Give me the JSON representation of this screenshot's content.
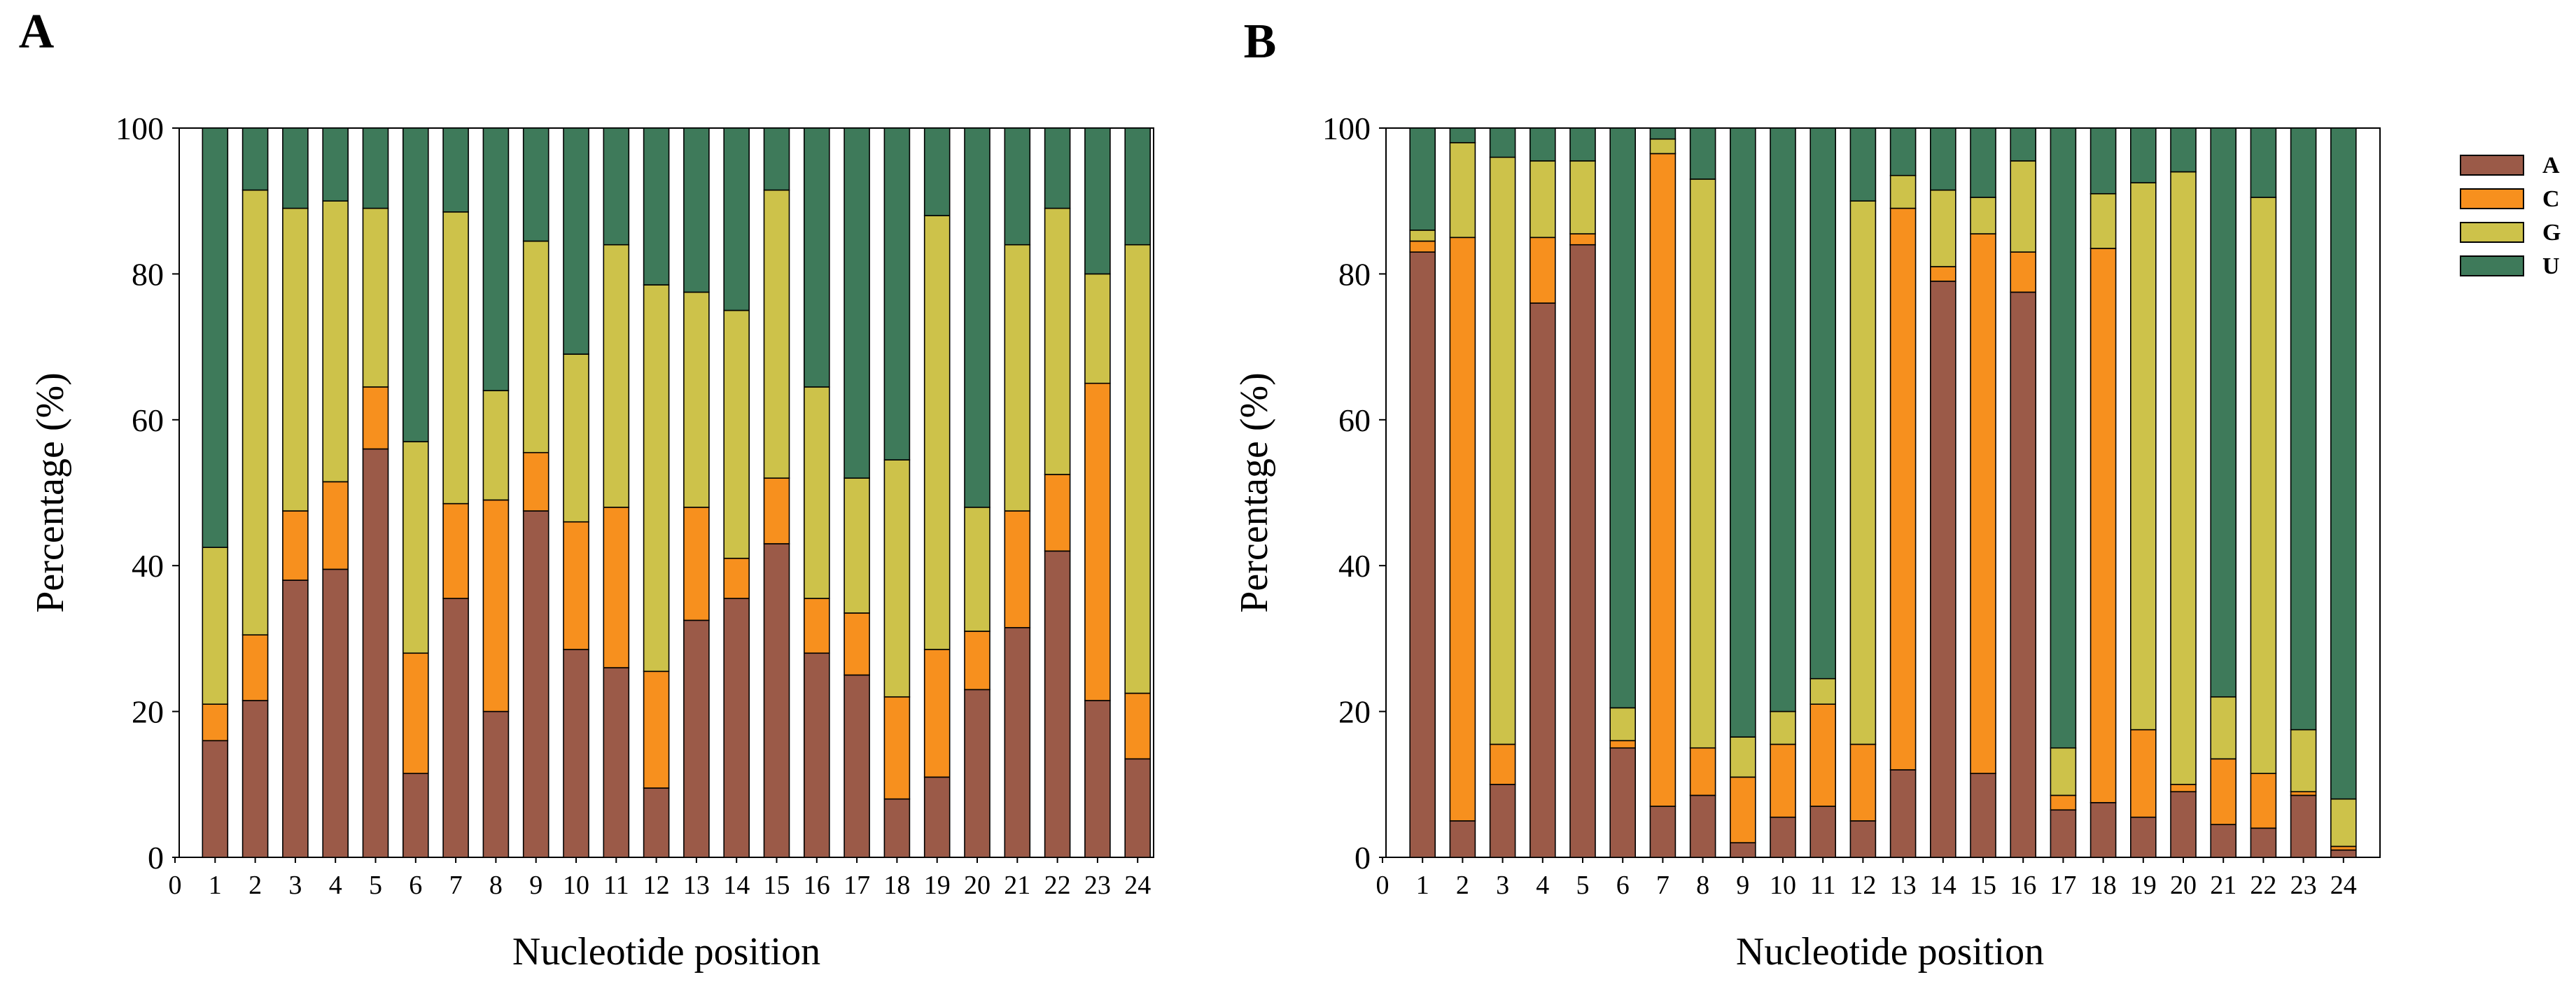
{
  "chart_data": [
    {
      "panel": "A",
      "type": "bar",
      "stacked": true,
      "xlabel": "Nucleotide position",
      "ylabel": "Percentage (%)",
      "ylim": [
        0,
        100
      ],
      "yticks": [
        "0",
        "20",
        "40",
        "60",
        "80",
        "100"
      ],
      "xticks": [
        "0",
        "1",
        "2",
        "3",
        "4",
        "5",
        "6",
        "7",
        "8",
        "9",
        "10",
        "11",
        "12",
        "13",
        "14",
        "15",
        "16",
        "17",
        "18",
        "19",
        "20",
        "21",
        "22",
        "23",
        "24"
      ],
      "series": [
        {
          "name": "A",
          "color": "#9b5a48",
          "values": [
            16,
            21.5,
            38,
            39.5,
            56,
            11.5,
            35.5,
            20,
            47.5,
            28.5,
            26,
            9.5,
            32.5,
            35.5,
            43,
            28,
            25,
            8,
            11,
            23,
            31.5,
            42,
            21.5,
            13.5
          ]
        },
        {
          "name": "C",
          "color": "#f7901e",
          "values": [
            5,
            9,
            9.5,
            12,
            8.5,
            16.5,
            13,
            29,
            8,
            17.5,
            22,
            16,
            15.5,
            5.5,
            9,
            7.5,
            8.5,
            14,
            17.5,
            8,
            16,
            10.5,
            43.5,
            9
          ]
        },
        {
          "name": "G",
          "color": "#cdc24a",
          "values": [
            21.5,
            61,
            41.5,
            38.5,
            24.5,
            29,
            40,
            15,
            29,
            23,
            36,
            53,
            29.5,
            34,
            39.5,
            29,
            18.5,
            32.5,
            59.5,
            17,
            36.5,
            36.5,
            15,
            61.5
          ]
        },
        {
          "name": "U",
          "color": "#3e7a5a",
          "values": [
            57.5,
            8.5,
            11,
            10,
            11,
            43,
            11.5,
            36,
            15.5,
            31,
            16,
            21.5,
            22.5,
            25,
            8.5,
            35.5,
            48,
            45.5,
            12,
            52,
            16,
            11,
            20,
            16
          ]
        }
      ]
    },
    {
      "panel": "B",
      "type": "bar",
      "stacked": true,
      "xlabel": "Nucleotide position",
      "ylabel": "Percentage (%)",
      "ylim": [
        0,
        100
      ],
      "yticks": [
        "0",
        "20",
        "40",
        "60",
        "80",
        "100"
      ],
      "xticks": [
        "0",
        "1",
        "2",
        "3",
        "4",
        "5",
        "6",
        "7",
        "8",
        "9",
        "10",
        "11",
        "12",
        "13",
        "14",
        "15",
        "16",
        "17",
        "18",
        "19",
        "20",
        "21",
        "22",
        "23",
        "24"
      ],
      "series": [
        {
          "name": "A",
          "color": "#9b5a48",
          "values": [
            83,
            5,
            10,
            76,
            84,
            15,
            7,
            8.5,
            2,
            5.5,
            7,
            5,
            12,
            79,
            11.5,
            77.5,
            6.5,
            7.5,
            5.5,
            9,
            4.5,
            4,
            8.5,
            1
          ]
        },
        {
          "name": "C",
          "color": "#f7901e",
          "values": [
            1.5,
            80,
            5.5,
            9,
            1.5,
            1,
            89.5,
            6.5,
            9,
            10,
            14,
            10.5,
            77,
            2,
            74,
            5.5,
            2,
            76,
            12,
            1,
            9,
            7.5,
            0.5,
            0.5
          ]
        },
        {
          "name": "G",
          "color": "#cdc24a",
          "values": [
            1.5,
            13,
            80.5,
            10.5,
            10,
            4.5,
            2,
            78,
            5.5,
            4.5,
            3.5,
            74.5,
            4.5,
            10.5,
            5,
            12.5,
            6.5,
            7.5,
            75,
            84,
            8.5,
            79,
            8.5,
            6.5
          ]
        },
        {
          "name": "U",
          "color": "#3e7a5a",
          "values": [
            14,
            2,
            4,
            4.5,
            4.5,
            79.5,
            1.5,
            7,
            83.5,
            80,
            75.5,
            10,
            6.5,
            8.5,
            9.5,
            4.5,
            85,
            9,
            7.5,
            6,
            78,
            9.5,
            82.5,
            92
          ]
        }
      ]
    }
  ],
  "legend": [
    {
      "label": "A",
      "color": "#9b5a48"
    },
    {
      "label": "C",
      "color": "#f7901e"
    },
    {
      "label": "G",
      "color": "#cdc24a"
    },
    {
      "label": "U",
      "color": "#3e7a5a"
    }
  ]
}
